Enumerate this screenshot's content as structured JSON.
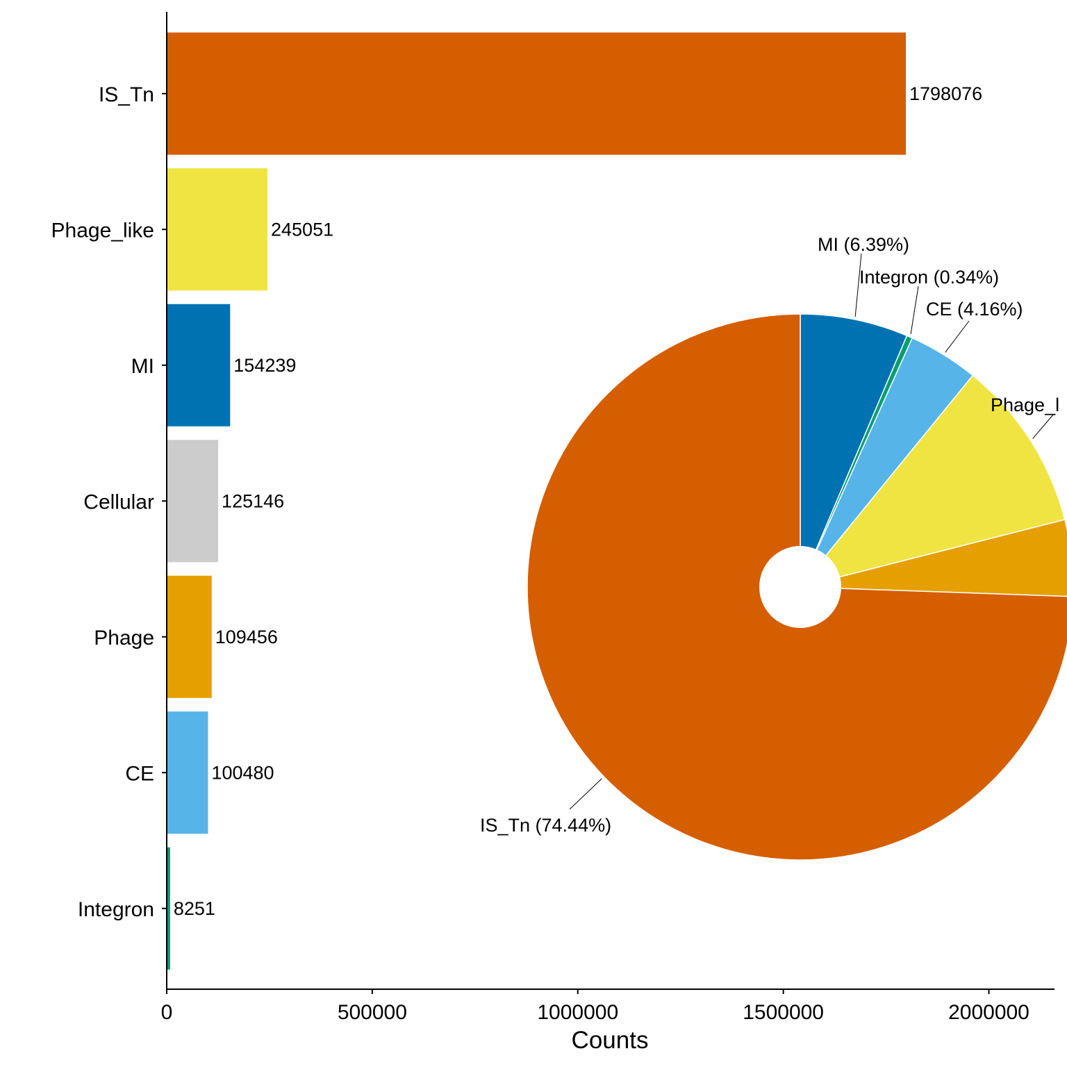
{
  "chart_data": [
    {
      "type": "bar",
      "orientation": "horizontal",
      "categories": [
        "IS_Tn",
        "Phage_like",
        "MI",
        "Cellular",
        "Phage",
        "CE",
        "Integron"
      ],
      "values": [
        1798076,
        245051,
        154239,
        125146,
        109456,
        100480,
        8251
      ],
      "value_labels": [
        "1798076",
        "245051",
        "154239",
        "125146",
        "109456",
        "100480",
        "8251"
      ],
      "colors": [
        "#D55E00",
        "#F0E442",
        "#0072B2",
        "#CCCCCC",
        "#E69F00",
        "#56B4E9",
        "#009E73"
      ],
      "xlabel": "Counts",
      "ylabel": "",
      "xlim": [
        0,
        2160000
      ],
      "xticks": [
        0,
        500000,
        1000000,
        1500000,
        2000000
      ],
      "xtick_labels": [
        "0",
        "500000",
        "1000000",
        "1500000",
        "2000000"
      ],
      "grid": false
    },
    {
      "type": "pie",
      "donut": true,
      "slices": [
        {
          "category": "MI",
          "percent": 6.39,
          "color": "#0072B2",
          "label": "MI (6.39%)"
        },
        {
          "category": "Integron",
          "percent": 0.34,
          "color": "#009E73",
          "label": "Integron (0.34%)"
        },
        {
          "category": "CE",
          "percent": 4.16,
          "color": "#56B4E9",
          "label": "CE (4.16%)"
        },
        {
          "category": "Phage_like",
          "percent": 10.14,
          "color": "#F0E442",
          "label": "Phage_l"
        },
        {
          "category": "Phage",
          "percent": 4.53,
          "color": "#E69F00",
          "label": ""
        },
        {
          "category": "IS_Tn",
          "percent": 74.44,
          "color": "#D55E00",
          "label": "IS_Tn (74.44%)"
        }
      ]
    }
  ]
}
